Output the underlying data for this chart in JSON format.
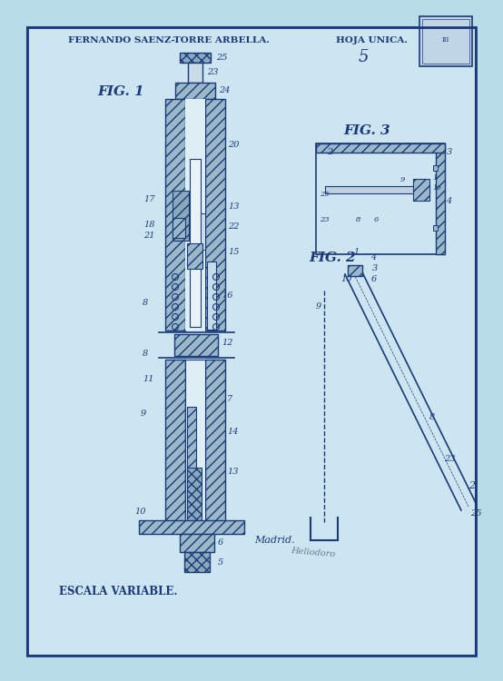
{
  "bg_color": "#b8dce8",
  "page_bg": "#cce5f0",
  "line_color": "#1a3a7a",
  "title_left": "FERNANDO SAENZ-TORRE ARBELLA.",
  "title_right": "HOJA UNICA.",
  "fig1_label": "FIG. 1",
  "fig2_label": "FIG. 2",
  "fig3_label": "FIG. 3",
  "escala": "ESCALA VARIABLE.",
  "madrid": "Madrid.",
  "outer_bg": "#b8dce8"
}
